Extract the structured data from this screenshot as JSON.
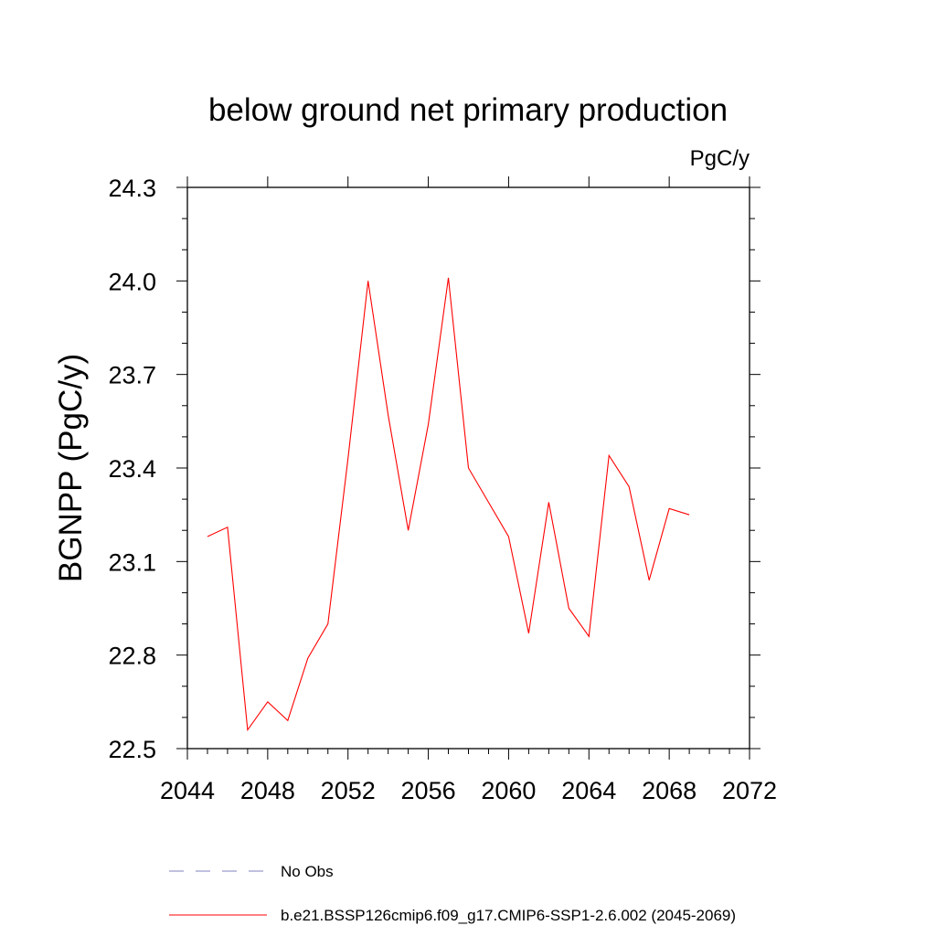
{
  "chart_data": {
    "type": "line",
    "title": "below ground net primary production",
    "units_label": "PgC/y",
    "ylabel": "BGNPP  (PgC/y)",
    "xlabel": "",
    "xlim": [
      2044,
      2072
    ],
    "ylim": [
      22.5,
      24.3
    ],
    "x_ticks": [
      2044,
      2048,
      2052,
      2056,
      2060,
      2064,
      2068,
      2072
    ],
    "y_ticks": [
      22.5,
      22.8,
      23.1,
      23.4,
      23.7,
      24.0,
      24.3
    ],
    "x_tick_labels": [
      "2044",
      "2048",
      "2052",
      "2056",
      "2060",
      "2064",
      "2068",
      "2072"
    ],
    "y_tick_labels": [
      "22.5",
      "22.8",
      "23.1",
      "23.4",
      "23.7",
      "24.0",
      "24.3"
    ],
    "grid": false,
    "legend_position": "bottom",
    "series": [
      {
        "name": "No Obs",
        "color": "#8080c0",
        "dash": true,
        "x": [],
        "values": []
      },
      {
        "name": "b.e21.BSSP126cmip6.f09_g17.CMIP6-SSP1-2.6.002 (2045-2069)",
        "color": "#ff0000",
        "dash": false,
        "x": [
          2045,
          2046,
          2047,
          2048,
          2049,
          2050,
          2051,
          2052,
          2053,
          2054,
          2055,
          2056,
          2057,
          2058,
          2059,
          2060,
          2061,
          2062,
          2063,
          2064,
          2065,
          2066,
          2067,
          2068,
          2069
        ],
        "values": [
          23.18,
          23.21,
          22.56,
          22.65,
          22.59,
          22.79,
          22.9,
          23.43,
          24.0,
          23.57,
          23.2,
          23.54,
          24.01,
          23.4,
          23.29,
          23.18,
          22.87,
          23.29,
          22.95,
          22.86,
          23.44,
          23.34,
          23.04,
          23.27,
          23.25
        ]
      }
    ]
  }
}
